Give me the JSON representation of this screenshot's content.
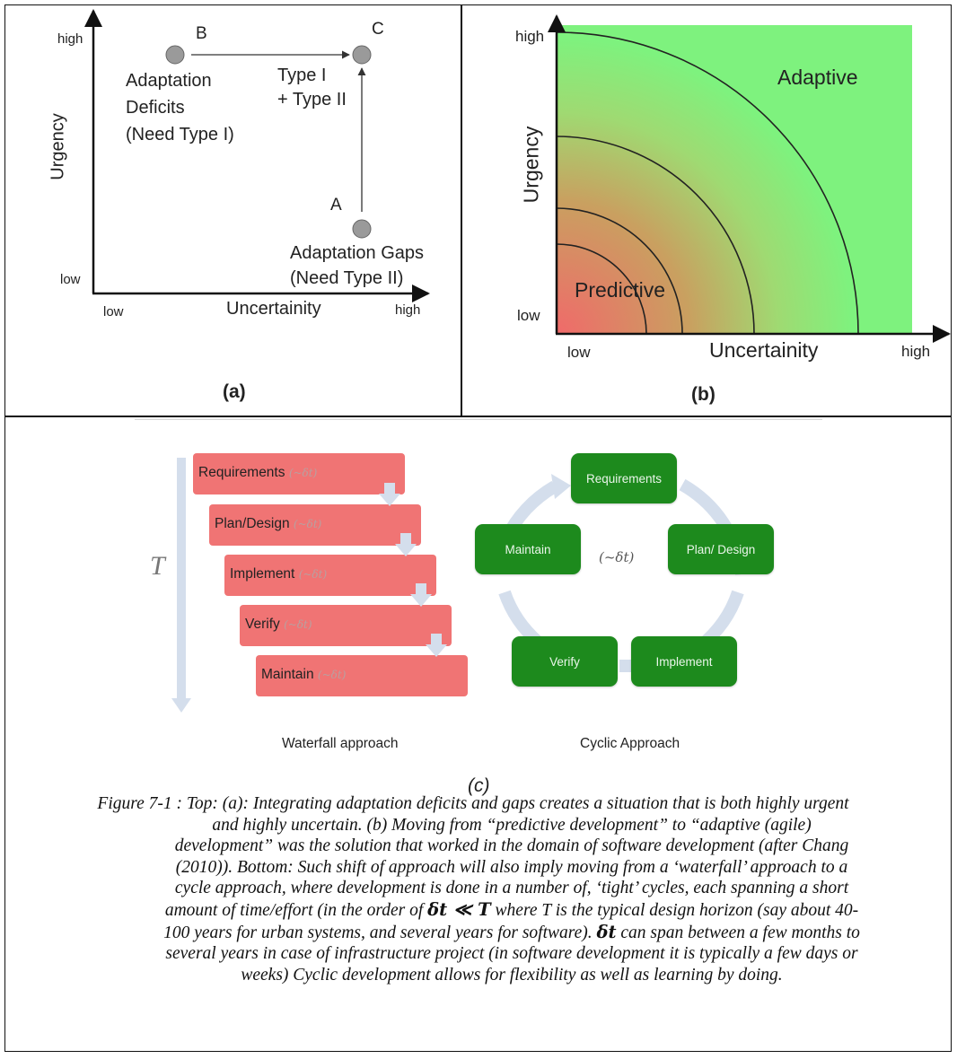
{
  "panel_a": {
    "axis": {
      "y_title": "Urgency",
      "x_title": "Uncertainity",
      "y_high": "high",
      "y_low": "low",
      "x_low": "low",
      "x_high": "high"
    },
    "points": {
      "b": {
        "letter": "B",
        "label_lines": [
          "Adaptation",
          "Deficits",
          "(Need Type I)"
        ]
      },
      "c": {
        "letter": "C"
      },
      "a": {
        "letter": "A",
        "label_lines": [
          "Adaptation Gaps",
          "(Need Type II)"
        ]
      }
    },
    "arrow_label_lines": [
      "Type I",
      "+ Type II"
    ],
    "tag": "(a)"
  },
  "panel_b": {
    "axis": {
      "y_title": "Urgency",
      "x_title": "Uncertainity",
      "y_high": "high",
      "y_low": "low",
      "x_low": "low",
      "x_high": "high"
    },
    "regions": {
      "adaptive": "Adaptive",
      "predictive": "Predictive"
    },
    "colors": {
      "predictive": "#f06a6a",
      "adaptive": "#7ef27e"
    },
    "tag": "(b)"
  },
  "panel_c": {
    "time_symbol": "T",
    "delta_suffix": "(~δt)",
    "waterfall": {
      "steps": [
        "Requirements",
        "Plan/Design",
        "Implement",
        "Verify",
        "Maintain"
      ],
      "caption": "Waterfall approach",
      "box_color": "#f07474"
    },
    "cyclic": {
      "nodes": {
        "requirements": "Requirements",
        "plan": "Plan/ Design",
        "implement": "Implement",
        "verify": "Verify",
        "maintain": "Maintain"
      },
      "center_label": "(~δt)",
      "caption": "Cyclic Approach",
      "node_color": "#1d8a1d",
      "cycle_color": "#d4deec"
    },
    "tag": "(c)"
  },
  "caption": {
    "line1": "Figure 7-1 : Top: (a): Integrating adaptation deficits and gaps creates a situation that is both highly urgent",
    "line2": "and highly uncertain. (b) Moving from “predictive development” to “adaptive (agile)",
    "line3": "development” was the solution that worked in the domain of software development (after Chang",
    "line4": "(2010)). Bottom: Such shift of approach will also imply moving from a ‘waterfall’ approach to a",
    "line5": "cycle approach, where development is done in a number of, ‘tight’ cycles, each spanning a short",
    "line6_pre": "amount of time/effort (in the order of",
    "line6_math": "δt ≪ T",
    "line6_post": "where T is the typical design horizon (say about 40-",
    "line7": "100 years for urban systems, and several years for software).",
    "line7_math": "δt",
    "line7_post": "can span between a few months to",
    "line8": "several years in case of infrastructure project (in software development it is typically a few days or",
    "line9": "weeks) Cyclic development allows for flexibility as well as learning by doing."
  }
}
